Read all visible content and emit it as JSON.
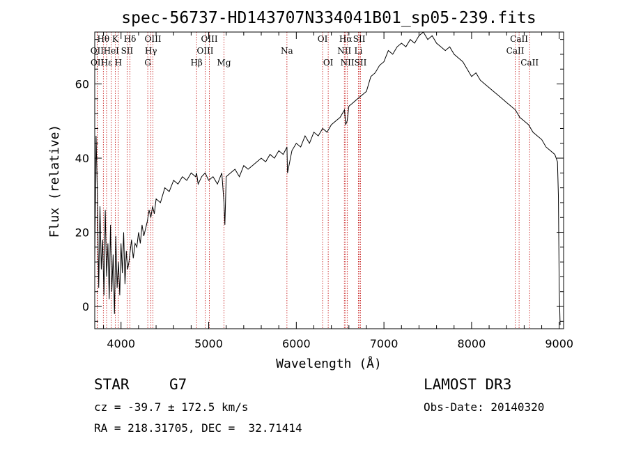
{
  "chart_data": {
    "type": "line",
    "title": "spec-56737-HD143707N334041B01_sp05-239.fits",
    "xlabel": "Wavelength (Å)",
    "ylabel": "Flux (relative)",
    "xlim": [
      3700,
      9050
    ],
    "ylim": [
      -6,
      74
    ],
    "xticks": [
      4000,
      5000,
      6000,
      7000,
      8000,
      9000
    ],
    "yticks": [
      0,
      20,
      40,
      60
    ],
    "series": [
      {
        "name": "flux",
        "x": [
          3700,
          3715,
          3730,
          3745,
          3760,
          3775,
          3790,
          3805,
          3820,
          3835,
          3850,
          3865,
          3880,
          3895,
          3910,
          3925,
          3940,
          3955,
          3970,
          3985,
          4000,
          4015,
          4030,
          4045,
          4060,
          4075,
          4090,
          4100,
          4120,
          4140,
          4160,
          4180,
          4200,
          4220,
          4240,
          4260,
          4280,
          4300,
          4320,
          4340,
          4360,
          4380,
          4400,
          4450,
          4500,
          4550,
          4600,
          4650,
          4700,
          4750,
          4800,
          4850,
          4862,
          4880,
          4920,
          4960,
          5000,
          5050,
          5100,
          5150,
          5175,
          5185,
          5200,
          5250,
          5300,
          5350,
          5400,
          5450,
          5500,
          5550,
          5600,
          5650,
          5700,
          5750,
          5800,
          5850,
          5893,
          5900,
          5950,
          6000,
          6050,
          6100,
          6150,
          6200,
          6250,
          6300,
          6350,
          6400,
          6450,
          6500,
          6550,
          6563,
          6580,
          6600,
          6650,
          6700,
          6750,
          6800,
          6850,
          6900,
          6950,
          7000,
          7050,
          7100,
          7150,
          7200,
          7250,
          7300,
          7350,
          7400,
          7450,
          7500,
          7550,
          7600,
          7650,
          7700,
          7750,
          7800,
          7850,
          7900,
          7950,
          8000,
          8050,
          8100,
          8150,
          8200,
          8250,
          8300,
          8350,
          8400,
          8450,
          8500,
          8550,
          8600,
          8650,
          8700,
          8750,
          8800,
          8850,
          8900,
          8950,
          8980,
          8990,
          9000,
          9010
        ],
        "values": [
          12,
          46,
          30,
          5,
          27,
          10,
          18,
          3,
          26,
          8,
          17,
          2,
          22,
          4,
          14,
          -2,
          19,
          5,
          12,
          3,
          17,
          9,
          20,
          6,
          15,
          10,
          12,
          14,
          18,
          13,
          17,
          16,
          20,
          17,
          22,
          19,
          21,
          23,
          26,
          24,
          27,
          25,
          29,
          28,
          32,
          31,
          34,
          33,
          35,
          34,
          36,
          35,
          36,
          33,
          35,
          36,
          34,
          35,
          33,
          36,
          28,
          22,
          35,
          36,
          37,
          35,
          38,
          37,
          38,
          39,
          40,
          39,
          41,
          40,
          42,
          41,
          43,
          36,
          42,
          44,
          43,
          46,
          44,
          47,
          46,
          48,
          47,
          49,
          50,
          51,
          53,
          49,
          50,
          54,
          55,
          56,
          57,
          58,
          62,
          63,
          65,
          66,
          69,
          68,
          70,
          71,
          70,
          72,
          71,
          73,
          74,
          72,
          73,
          71,
          70,
          69,
          70,
          68,
          67,
          66,
          64,
          62,
          63,
          61,
          60,
          59,
          58,
          57,
          56,
          55,
          54,
          53,
          51,
          50,
          49,
          47,
          46,
          45,
          43,
          42,
          41,
          39,
          30,
          5,
          -5
        ]
      }
    ],
    "spectral_lines": [
      {
        "label": "Hθ",
        "wavelength": 3798,
        "row": 0
      },
      {
        "label": "OII",
        "wavelength": 3727,
        "row": 1
      },
      {
        "label": "OII",
        "wavelength": 3729,
        "row": 2
      },
      {
        "label": "Hε",
        "wavelength": 3835,
        "row": 2
      },
      {
        "label": "K",
        "wavelength": 3934,
        "row": 0
      },
      {
        "label": "HeI",
        "wavelength": 3889,
        "row": 1
      },
      {
        "label": "H",
        "wavelength": 3969,
        "row": 2
      },
      {
        "label": "Hδ",
        "wavelength": 4102,
        "row": 0
      },
      {
        "label": "SII",
        "wavelength": 4069,
        "row": 1
      },
      {
        "label": "OIII",
        "wavelength": 4364,
        "row": 0
      },
      {
        "label": "Hγ",
        "wavelength": 4341,
        "row": 1
      },
      {
        "label": "G",
        "wavelength": 4305,
        "row": 2
      },
      {
        "label": "Hβ",
        "wavelength": 4862,
        "row": 2
      },
      {
        "label": "OIII",
        "wavelength": 5008,
        "row": 0
      },
      {
        "label": "OIII",
        "wavelength": 4960,
        "row": 1
      },
      {
        "label": "Mg",
        "wavelength": 5175,
        "row": 2
      },
      {
        "label": "Na",
        "wavelength": 5893,
        "row": 1
      },
      {
        "label": "OI",
        "wavelength": 6300,
        "row": 0
      },
      {
        "label": "OI",
        "wavelength": 6364,
        "row": 2
      },
      {
        "label": "Hα",
        "wavelength": 6563,
        "row": 0
      },
      {
        "label": "SII",
        "wavelength": 6718,
        "row": 0
      },
      {
        "label": "NII",
        "wavelength": 6548,
        "row": 1
      },
      {
        "label": "Li",
        "wavelength": 6708,
        "row": 1
      },
      {
        "label": "NII",
        "wavelength": 6583,
        "row": 2
      },
      {
        "label": "SII",
        "wavelength": 6733,
        "row": 2
      },
      {
        "label": "CaII",
        "wavelength": 8542,
        "row": 0
      },
      {
        "label": "CaII",
        "wavelength": 8498,
        "row": 1
      },
      {
        "label": "CaII",
        "wavelength": 8662,
        "row": 2
      }
    ]
  },
  "info": {
    "class_label": "STAR",
    "subclass": "G7",
    "survey": "LAMOST DR3",
    "velocity": "cz = -39.7 ± 172.5 km/s",
    "obs_date": "Obs-Date: 20140320",
    "coords": "RA = 218.31705, DEC =  32.71414"
  },
  "colors": {
    "spectrum": "#000000",
    "line_markers": "#c00000",
    "axes": "#000000",
    "background": "#ffffff"
  }
}
